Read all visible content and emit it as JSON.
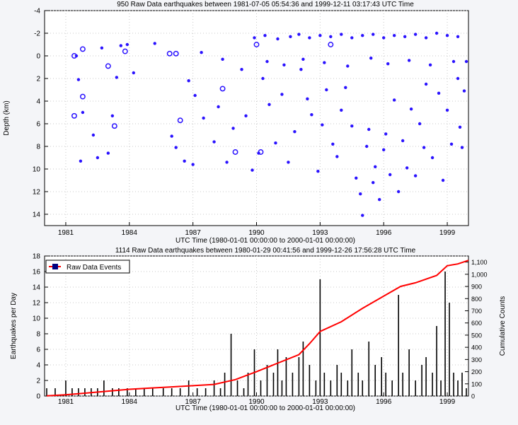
{
  "chart_data": [
    {
      "type": "scatter",
      "title": "950 Raw Data earthquakes between 1981-07-05 05:54:36 and 1999-12-11 03:17:43 UTC Time",
      "xlabel": "UTC Time (1980-01-01 00:00:00 to 2000-01-01 00:00:00)",
      "ylabel": "Depth (km)",
      "xlim": [
        1980,
        2000
      ],
      "ylim": [
        -4,
        15
      ],
      "y_inverted": true,
      "x_ticks": [
        1981,
        1984,
        1987,
        1990,
        1993,
        1996,
        1999
      ],
      "x_tick_labels": [
        "1981",
        "1984",
        "1987",
        "1990",
        "1993",
        "1996",
        "1999"
      ],
      "y_ticks": [
        -4,
        -2,
        0,
        2,
        4,
        6,
        8,
        10,
        12,
        14
      ],
      "y_tick_labels": [
        "-4",
        "-2",
        "0",
        "2",
        "4",
        "6",
        "8",
        "10",
        "12",
        "14"
      ],
      "grid": true,
      "marker_color": "#2a12ff",
      "points": [
        [
          1981.5,
          0.0
        ],
        [
          1981.6,
          2.1
        ],
        [
          1981.7,
          9.3
        ],
        [
          1981.8,
          5.0
        ],
        [
          1982.3,
          7.0
        ],
        [
          1982.5,
          9.0
        ],
        [
          1982.7,
          -0.7
        ],
        [
          1983.0,
          8.6
        ],
        [
          1983.2,
          5.3
        ],
        [
          1983.4,
          1.9
        ],
        [
          1983.6,
          -0.9
        ],
        [
          1983.9,
          -1.0
        ],
        [
          1984.2,
          1.5
        ],
        [
          1985.2,
          -1.1
        ],
        [
          1986.0,
          7.1
        ],
        [
          1986.2,
          8.1
        ],
        [
          1986.6,
          9.3
        ],
        [
          1986.8,
          2.2
        ],
        [
          1987.0,
          9.6
        ],
        [
          1987.1,
          3.5
        ],
        [
          1987.4,
          -0.3
        ],
        [
          1987.5,
          5.5
        ],
        [
          1988.0,
          7.6
        ],
        [
          1988.2,
          4.5
        ],
        [
          1988.4,
          0.3
        ],
        [
          1988.6,
          9.4
        ],
        [
          1988.9,
          6.4
        ],
        [
          1989.3,
          1.2
        ],
        [
          1989.5,
          5.3
        ],
        [
          1989.8,
          10.1
        ],
        [
          1990.1,
          8.6
        ],
        [
          1990.3,
          2.0
        ],
        [
          1990.6,
          4.3
        ],
        [
          1990.9,
          7.7
        ],
        [
          1991.2,
          3.4
        ],
        [
          1991.5,
          9.4
        ],
        [
          1991.8,
          6.7
        ],
        [
          1992.1,
          1.2
        ],
        [
          1992.4,
          3.8
        ],
        [
          1992.6,
          5.2
        ],
        [
          1992.9,
          10.2
        ],
        [
          1993.1,
          6.1
        ],
        [
          1993.3,
          3.0
        ],
        [
          1993.6,
          7.8
        ],
        [
          1993.8,
          8.9
        ],
        [
          1994.0,
          4.8
        ],
        [
          1994.2,
          2.8
        ],
        [
          1994.5,
          6.2
        ],
        [
          1994.7,
          10.8
        ],
        [
          1994.9,
          12.2
        ],
        [
          1995.0,
          14.1
        ],
        [
          1995.2,
          8.0
        ],
        [
          1995.3,
          6.5
        ],
        [
          1995.5,
          11.2
        ],
        [
          1995.6,
          9.8
        ],
        [
          1995.8,
          12.7
        ],
        [
          1996.0,
          8.3
        ],
        [
          1996.1,
          6.9
        ],
        [
          1996.3,
          10.5
        ],
        [
          1996.5,
          3.9
        ],
        [
          1996.7,
          12.0
        ],
        [
          1996.9,
          7.5
        ],
        [
          1997.1,
          9.9
        ],
        [
          1997.3,
          4.7
        ],
        [
          1997.5,
          10.6
        ],
        [
          1997.7,
          6.0
        ],
        [
          1997.9,
          8.1
        ],
        [
          1998.0,
          2.5
        ],
        [
          1998.3,
          9.0
        ],
        [
          1998.6,
          3.3
        ],
        [
          1998.8,
          11.0
        ],
        [
          1999.0,
          4.8
        ],
        [
          1999.2,
          7.8
        ],
        [
          1999.5,
          2.0
        ],
        [
          1999.6,
          6.3
        ],
        [
          1999.7,
          8.1
        ],
        [
          1999.8,
          3.1
        ],
        [
          1999.9,
          0.5
        ],
        [
          1989.9,
          -1.6
        ],
        [
          1990.4,
          -1.8
        ],
        [
          1991.0,
          -1.5
        ],
        [
          1991.6,
          -1.7
        ],
        [
          1992.0,
          -1.9
        ],
        [
          1992.5,
          -1.6
        ],
        [
          1993.0,
          -1.8
        ],
        [
          1993.5,
          -1.7
        ],
        [
          1994.0,
          -1.9
        ],
        [
          1994.5,
          -1.6
        ],
        [
          1995.0,
          -1.8
        ],
        [
          1995.5,
          -1.9
        ],
        [
          1996.0,
          -1.6
        ],
        [
          1996.5,
          -1.8
        ],
        [
          1997.0,
          -1.7
        ],
        [
          1997.5,
          -1.9
        ],
        [
          1998.0,
          -1.6
        ],
        [
          1998.5,
          -2.0
        ],
        [
          1999.0,
          -1.8
        ],
        [
          1999.5,
          -1.7
        ],
        [
          1990.5,
          0.5
        ],
        [
          1991.3,
          0.8
        ],
        [
          1992.2,
          0.3
        ],
        [
          1993.2,
          0.6
        ],
        [
          1994.3,
          0.9
        ],
        [
          1995.4,
          0.2
        ],
        [
          1996.2,
          0.7
        ],
        [
          1997.2,
          0.4
        ],
        [
          1998.2,
          0.8
        ],
        [
          1999.3,
          0.5
        ]
      ],
      "open_points": [
        [
          1981.4,
          0.0
        ],
        [
          1981.8,
          -0.6
        ],
        [
          1981.4,
          5.3
        ],
        [
          1981.8,
          3.6
        ],
        [
          1983.0,
          0.9
        ],
        [
          1983.3,
          6.2
        ],
        [
          1983.8,
          -0.4
        ],
        [
          1985.9,
          -0.2
        ],
        [
          1986.2,
          -0.2
        ],
        [
          1986.4,
          5.7
        ],
        [
          1988.4,
          2.9
        ],
        [
          1989.0,
          8.5
        ],
        [
          1990.2,
          8.5
        ],
        [
          1990.0,
          -1.0
        ],
        [
          1993.5,
          -1.0
        ]
      ]
    },
    {
      "type": "bar",
      "title": "1114 Raw Data earthquakes between 1980-01-29 00:41:56 and 1999-12-26 17:56:28 UTC Time",
      "xlabel": "UTC Time (1980-01-01 00:00:00 to 2000-01-01 00:00:00)",
      "ylabel": "Earthquakes per Day",
      "y2label": "Cumulative Counts",
      "xlim": [
        1980,
        2000
      ],
      "ylim": [
        0,
        18
      ],
      "y2lim": [
        0,
        1150
      ],
      "x_ticks": [
        1981,
        1984,
        1987,
        1990,
        1993,
        1996,
        1999
      ],
      "x_tick_labels": [
        "1981",
        "1984",
        "1987",
        "1990",
        "1993",
        "1996",
        "1999"
      ],
      "y_ticks": [
        0,
        2,
        4,
        6,
        8,
        10,
        12,
        14,
        16,
        18
      ],
      "y_tick_labels": [
        "0",
        "2",
        "4",
        "6",
        "8",
        "10",
        "12",
        "14",
        "16",
        "18"
      ],
      "y2_ticks": [
        0,
        100,
        200,
        300,
        400,
        500,
        600,
        700,
        800,
        900,
        1000,
        1100
      ],
      "y2_tick_labels": [
        "0",
        "100",
        "200",
        "300",
        "400",
        "500",
        "600",
        "700",
        "800",
        "900",
        "1,000",
        "1,100"
      ],
      "grid": true,
      "legend": {
        "label": "Raw Data Events",
        "position": "top-left"
      },
      "bar_color": "#000000",
      "line_color": "#ff0000",
      "legend_swatch_color": "#000080",
      "bars": [
        [
          1980.1,
          1
        ],
        [
          1980.5,
          1
        ],
        [
          1981.0,
          2
        ],
        [
          1981.3,
          1
        ],
        [
          1981.6,
          1
        ],
        [
          1981.9,
          1
        ],
        [
          1982.2,
          1
        ],
        [
          1982.5,
          1
        ],
        [
          1982.8,
          2
        ],
        [
          1983.2,
          1
        ],
        [
          1983.5,
          1
        ],
        [
          1983.9,
          1
        ],
        [
          1984.3,
          1
        ],
        [
          1984.7,
          1
        ],
        [
          1985.1,
          1
        ],
        [
          1985.6,
          1
        ],
        [
          1986.0,
          1
        ],
        [
          1986.4,
          1
        ],
        [
          1986.8,
          2
        ],
        [
          1987.2,
          1
        ],
        [
          1987.6,
          1
        ],
        [
          1988.0,
          2
        ],
        [
          1988.3,
          1
        ],
        [
          1988.5,
          3
        ],
        [
          1988.8,
          8
        ],
        [
          1989.1,
          2
        ],
        [
          1989.4,
          1
        ],
        [
          1989.6,
          3
        ],
        [
          1989.9,
          6
        ],
        [
          1990.2,
          2
        ],
        [
          1990.5,
          4
        ],
        [
          1990.8,
          3
        ],
        [
          1991.0,
          6
        ],
        [
          1991.2,
          2
        ],
        [
          1991.4,
          5
        ],
        [
          1991.7,
          3
        ],
        [
          1992.0,
          5
        ],
        [
          1992.2,
          7
        ],
        [
          1992.5,
          4
        ],
        [
          1992.8,
          2
        ],
        [
          1993.0,
          15
        ],
        [
          1993.2,
          3
        ],
        [
          1993.5,
          2
        ],
        [
          1993.8,
          4
        ],
        [
          1994.0,
          3
        ],
        [
          1994.3,
          2
        ],
        [
          1994.5,
          6
        ],
        [
          1994.8,
          3
        ],
        [
          1995.0,
          2
        ],
        [
          1995.3,
          7
        ],
        [
          1995.6,
          4
        ],
        [
          1995.9,
          5
        ],
        [
          1996.1,
          3
        ],
        [
          1996.4,
          2
        ],
        [
          1996.7,
          13
        ],
        [
          1996.9,
          3
        ],
        [
          1997.2,
          6
        ],
        [
          1997.5,
          2
        ],
        [
          1997.8,
          4
        ],
        [
          1998.0,
          5
        ],
        [
          1998.3,
          3
        ],
        [
          1998.5,
          9
        ],
        [
          1998.7,
          2
        ],
        [
          1998.9,
          16
        ],
        [
          1999.1,
          12
        ],
        [
          1999.3,
          3
        ],
        [
          1999.5,
          2
        ],
        [
          1999.7,
          3
        ],
        [
          1999.9,
          1
        ]
      ],
      "cumulative": [
        [
          1980.1,
          2
        ],
        [
          1981.0,
          10
        ],
        [
          1982.0,
          25
        ],
        [
          1983.0,
          40
        ],
        [
          1984.0,
          55
        ],
        [
          1985.0,
          65
        ],
        [
          1986.0,
          75
        ],
        [
          1987.0,
          85
        ],
        [
          1988.0,
          95
        ],
        [
          1989.0,
          135
        ],
        [
          1990.0,
          200
        ],
        [
          1991.0,
          270
        ],
        [
          1992.0,
          340
        ],
        [
          1992.5,
          430
        ],
        [
          1993.0,
          530
        ],
        [
          1994.0,
          610
        ],
        [
          1995.0,
          720
        ],
        [
          1996.0,
          820
        ],
        [
          1996.8,
          900
        ],
        [
          1997.5,
          930
        ],
        [
          1998.5,
          990
        ],
        [
          1999.0,
          1070
        ],
        [
          1999.5,
          1085
        ],
        [
          2000.0,
          1114
        ]
      ]
    }
  ]
}
